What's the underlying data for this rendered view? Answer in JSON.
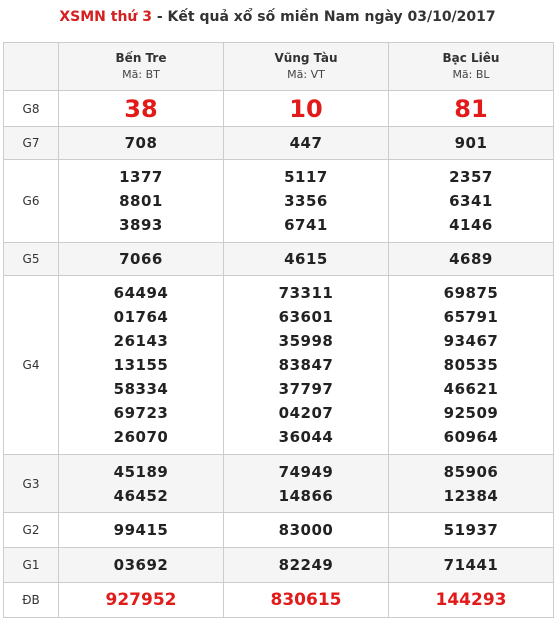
{
  "title": {
    "link_text": "XSMN thứ 3",
    "rest_text": " - Kết quả xổ số miền Nam ngày 03/10/2017"
  },
  "provinces": [
    {
      "name": "Bến Tre",
      "code": "Mã: BT"
    },
    {
      "name": "Vũng Tàu",
      "code": "Mã: VT"
    },
    {
      "name": "Bạc Liêu",
      "code": "Mã: BL"
    }
  ],
  "prizes": [
    {
      "label": "G8",
      "cells": [
        [
          "38"
        ],
        [
          "10"
        ],
        [
          "81"
        ]
      ]
    },
    {
      "label": "G7",
      "cells": [
        [
          "708"
        ],
        [
          "447"
        ],
        [
          "901"
        ]
      ]
    },
    {
      "label": "G6",
      "cells": [
        [
          "1377",
          "8801",
          "3893"
        ],
        [
          "5117",
          "3356",
          "6741"
        ],
        [
          "2357",
          "6341",
          "4146"
        ]
      ]
    },
    {
      "label": "G5",
      "cells": [
        [
          "7066"
        ],
        [
          "4615"
        ],
        [
          "4689"
        ]
      ]
    },
    {
      "label": "G4",
      "cells": [
        [
          "64494",
          "01764",
          "26143",
          "13155",
          "58334",
          "69723",
          "26070"
        ],
        [
          "73311",
          "63601",
          "35998",
          "83847",
          "37797",
          "04207",
          "36044"
        ],
        [
          "69875",
          "65791",
          "93467",
          "80535",
          "46621",
          "92509",
          "60964"
        ]
      ]
    },
    {
      "label": "G3",
      "cells": [
        [
          "45189",
          "46452"
        ],
        [
          "74949",
          "14866"
        ],
        [
          "85906",
          "12384"
        ]
      ]
    },
    {
      "label": "G2",
      "cells": [
        [
          "99415"
        ],
        [
          "83000"
        ],
        [
          "51937"
        ]
      ]
    },
    {
      "label": "G1",
      "cells": [
        [
          "03692"
        ],
        [
          "82249"
        ],
        [
          "71441"
        ]
      ]
    },
    {
      "label": "ĐB",
      "cells": [
        [
          "927952"
        ],
        [
          "830615"
        ],
        [
          "144293"
        ]
      ]
    }
  ],
  "colors": {
    "accent_red": "#e21a1a",
    "row_alt": "#f5f5f5",
    "border": "#cccccc"
  }
}
